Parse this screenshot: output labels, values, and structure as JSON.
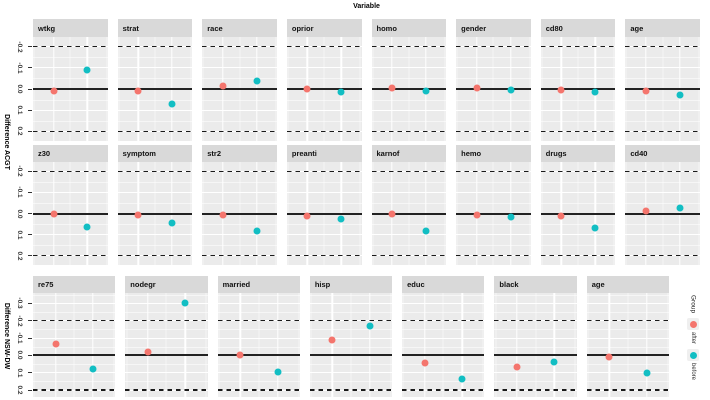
{
  "chart_data": {
    "type": "scatter",
    "title": "Variable",
    "legend": {
      "title": "Group",
      "items": [
        {
          "label": "after",
          "color": "#f4756d"
        },
        {
          "label": "before",
          "color": "#12bec3"
        }
      ]
    },
    "x_categories": [
      "after",
      "before"
    ],
    "x_positions_pct": [
      27.5,
      73
    ],
    "colors": {
      "after": "#f4756d",
      "before": "#12bec3",
      "panel_bg": "#ebebeb",
      "strip_bg": "#d9d9d9",
      "grid": "#ffffff",
      "ref_line": "#222222"
    },
    "blocks": [
      {
        "ylabel": "Difference ACGT",
        "tick_labels": [
          "-0.2",
          "-0.1",
          "0.0",
          "0.1",
          "0.2"
        ],
        "tick_values": [
          -0.2,
          -0.1,
          0,
          0.1,
          0.2
        ],
        "ylim": [
          -0.245,
          0.245
        ],
        "dashed_refs": [
          -0.2,
          0.2
        ],
        "solid_ref": 0,
        "axis_reversed": true,
        "rows": [
          {
            "panels": [
              {
                "var": "wtkg",
                "after": 0.01,
                "before": -0.09
              },
              {
                "var": "strat",
                "after": 0.01,
                "before": 0.07
              },
              {
                "var": "race",
                "after": -0.015,
                "before": -0.04
              },
              {
                "var": "oprior",
                "after": 0.0,
                "before": 0.015
              },
              {
                "var": "homo",
                "after": -0.005,
                "before": 0.01
              },
              {
                "var": "gender",
                "after": -0.005,
                "before": 0.005
              },
              {
                "var": "cd80",
                "after": 0.005,
                "before": 0.015
              },
              {
                "var": "age",
                "after": 0.01,
                "before": 0.03
              }
            ]
          },
          {
            "panels": [
              {
                "var": "z30",
                "after": 0.0,
                "before": 0.065
              },
              {
                "var": "symptom",
                "after": 0.005,
                "before": 0.045
              },
              {
                "var": "str2",
                "after": 0.005,
                "before": 0.085
              },
              {
                "var": "preanti",
                "after": 0.01,
                "before": 0.025
              },
              {
                "var": "karnof",
                "after": 0.0,
                "before": 0.085
              },
              {
                "var": "hemo",
                "after": 0.005,
                "before": 0.015
              },
              {
                "var": "drugs",
                "after": 0.01,
                "before": 0.07
              },
              {
                "var": "cd40",
                "after": -0.01,
                "before": -0.025
              }
            ]
          }
        ]
      },
      {
        "ylabel": "Difference NSW-DW",
        "tick_labels": [
          "-0.3",
          "-0.2",
          "-0.1",
          "0.0",
          "0.1",
          "0.2"
        ],
        "tick_values": [
          -0.3,
          -0.2,
          -0.1,
          0,
          0.1,
          0.2
        ],
        "ylim": [
          -0.36,
          0.24
        ],
        "dashed_refs": [
          -0.2,
          0.2
        ],
        "solid_ref": 0,
        "axis_reversed": true,
        "rows": [
          {
            "panels": [
              {
                "var": "re75",
                "after": -0.065,
                "before": 0.08
              },
              {
                "var": "nodegr",
                "after": -0.02,
                "before": -0.305
              },
              {
                "var": "married",
                "after": 0.0,
                "before": 0.095
              },
              {
                "var": "hisp",
                "after": -0.09,
                "before": -0.17
              },
              {
                "var": "educ",
                "after": 0.045,
                "before": 0.135
              },
              {
                "var": "black",
                "after": 0.065,
                "before": 0.04
              },
              {
                "var": "age",
                "after": 0.01,
                "before": 0.1
              }
            ]
          }
        ]
      }
    ]
  }
}
